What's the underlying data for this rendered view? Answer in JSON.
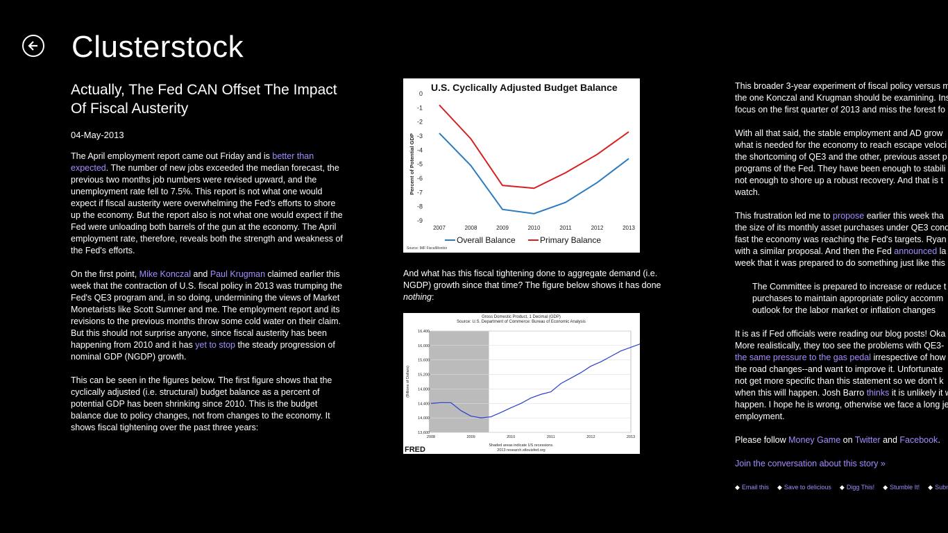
{
  "app": {
    "title": "Clusterstock"
  },
  "article": {
    "title_line1": "Actually, The Fed CAN Offset The Impact",
    "title_line2": "Of Fiscal Austerity",
    "date": "04-May-2013",
    "p1_pre": "The April employment report came out Friday and is ",
    "p1_link1": "better than expected",
    "p1_post": ". The number of new jobs exceeded the median forecast, the previous two months job numbers were revised upward, and the unemployment rate fell to 7.5%. This report is not what one would expect if fiscal austerity were overwhelming the Fed's efforts to shore up the economy. But the report also is not what one would expect if the Fed were unloading both barrels of the gun at the economy. The April employment rate, therefore, reveals both the strength and weakness of the Fed's efforts.",
    "p2_pre": "On the first point, ",
    "p2_link1": "Mike Konczal",
    "p2_mid1": " and ",
    "p2_link2": "Paul Krugman",
    "p2_mid2": " claimed earlier this week that the contraction of U.S. fiscal policy in 2013 was trumping the Fed's QE3 program and, in so doing, undermining the views of Market Monetarists like Scott Sumner and me. The employment report and its revisions to the previous months throw some cold water on their claim. But this should not surprise anyone, since fiscal austerity has been happening from 2010 and it has ",
    "p2_link3": "yet to stop",
    "p2_post": " the steady progression of nominal GDP (NGDP) growth.",
    "p3": "This can be seen in the figures below. The first figure shows that the cyclically adjusted (i.e. structural) budget balance as a percent of potential GDP has been shrinking since 2010. This is the budget balance due to policy changes, not from changes to the economy. It shows fiscal tightening over the past three years:",
    "fig_caption_pre": "And what has this fiscal tightening done to aggregate demand (i.e. NGDP) growth since that time? The figure below shows it has done ",
    "fig_caption_em": "nothing",
    "fig_caption_post": ":",
    "c3_p1": [
      "This broader 3-year experiment of fiscal policy versus m",
      "the one Konczal and Krugman should be examining. Ins",
      "focus on the first quarter of 2013 and miss the forest fo"
    ],
    "c3_p2": [
      "With all that said, the stable employment and AD grow",
      "what is needed for the economy to reach escape veloci",
      "the shortcoming of QE3 and the other, previous asset p",
      "programs of the Fed. They have been enough to stabili",
      "not enough to shore up a robust recovery. And that is t",
      "watch."
    ],
    "c3_p3_l1_pre": "This frustration led me to ",
    "c3_p3_l1_link": "propose",
    "c3_p3_l1_post": " earlier this week tha",
    "c3_p3_l2": "the size of its monthly asset purchases under QE3 cond",
    "c3_p3_l3": "fast the economy was reaching the Fed's targets. Ryan",
    "c3_p3_l4": "with a similar proposal. And then the Fed ",
    "c3_p3_l4_link": "announced",
    "c3_p3_l4_post": " la",
    "c3_p3_l5": "week that it was prepared to do something just like this",
    "quote": [
      "The Committee is prepared to increase or reduce t",
      "purchases to maintain appropriate policy accomm",
      "outlook for the labor market or inflation changes"
    ],
    "c3_p4_l1": "It is as if Fed officials were reading our blog posts! Oka",
    "c3_p4_l2": "More realistically, they too see the problems with QE3-",
    "c3_p4_l3_link": "the same pressure to the gas pedal",
    "c3_p4_l3_post": " irrespective of how",
    "c3_p4_l4": "the road changes--and want to improve it. Unfortunate",
    "c3_p4_l5": "not get more specific than this statement so we don't k",
    "c3_p4_l6_pre": "when this will happen. Josh Barro ",
    "c3_p4_l6_link": "thinks",
    "c3_p4_l6_post": " it is unlikely it w",
    "c3_p4_l7": "happen. I hope he is wrong, otherwise we face a long je",
    "c3_p4_l8": "employment.",
    "follow_pre": "Please follow ",
    "follow_link1": "Money Game",
    "follow_mid1": " on ",
    "follow_link2": "Twitter",
    "follow_mid2": " and ",
    "follow_link3": "Facebook",
    "follow_post": ".",
    "join_link": "Join the conversation about this story »",
    "share": [
      "Email this",
      "Save to delicious",
      "Digg This!",
      "Stumble It!",
      "Submit"
    ]
  },
  "chart_data": [
    {
      "type": "line",
      "title": "U.S. Cyclically Adjusted Budget Balance",
      "ylabel": "Percent of Potential GDP",
      "source": "Source: IMF FiscalMonitor",
      "x": [
        "2007",
        "2008",
        "2009",
        "2010",
        "2011",
        "2012",
        "2013"
      ],
      "ylim": [
        -9,
        0
      ],
      "yticks": [
        "0",
        "-1",
        "-2",
        "-3",
        "-4",
        "-5",
        "-6",
        "-7",
        "-8",
        "-9"
      ],
      "series": [
        {
          "name": "Overall Balance",
          "color": "#2b7bc0",
          "values": [
            -2.8,
            -5.1,
            -8.2,
            -8.5,
            -7.7,
            -6.3,
            -4.6
          ]
        },
        {
          "name": "Primary Balance",
          "color": "#d62020",
          "values": [
            -0.8,
            -3.2,
            -6.5,
            -6.7,
            -5.6,
            -4.3,
            -2.7
          ]
        }
      ]
    },
    {
      "type": "line",
      "title": "Gross Domestic Product, 1 Decimal (GDP)",
      "subtitle": "Source: U.S. Department of Commerce: Bureau of Economic Analysis",
      "ylabel": "(Billions of Dollars)",
      "x": [
        "2008",
        "2009",
        "2010",
        "2011",
        "2012",
        "2013"
      ],
      "ylim": [
        13600,
        16400
      ],
      "yticks": [
        "13,600",
        "14,000",
        "14,400",
        "14,800",
        "15,200",
        "15,600",
        "16,000",
        "16,400"
      ],
      "recession_note": "Shaded areas indicate US recessions.",
      "site": "2013 research.stlouisfed.org",
      "logo": "FRED",
      "series": [
        {
          "name": "GDP",
          "color": "#2a3fd0",
          "points": [
            [
              2008.0,
              14400
            ],
            [
              2008.25,
              14420
            ],
            [
              2008.5,
              14420
            ],
            [
              2008.75,
              14200
            ],
            [
              2009.0,
              14050
            ],
            [
              2009.25,
              14000
            ],
            [
              2009.5,
              14030
            ],
            [
              2009.75,
              14150
            ],
            [
              2010.0,
              14280
            ],
            [
              2010.25,
              14400
            ],
            [
              2010.5,
              14550
            ],
            [
              2010.75,
              14650
            ],
            [
              2011.0,
              14720
            ],
            [
              2011.25,
              14950
            ],
            [
              2011.5,
              15100
            ],
            [
              2011.75,
              15250
            ],
            [
              2012.0,
              15430
            ],
            [
              2012.25,
              15550
            ],
            [
              2012.5,
              15700
            ],
            [
              2012.75,
              15850
            ],
            [
              2013.0,
              15950
            ],
            [
              2013.25,
              16050
            ]
          ]
        }
      ],
      "recession": [
        2007.95,
        2009.45
      ]
    }
  ]
}
